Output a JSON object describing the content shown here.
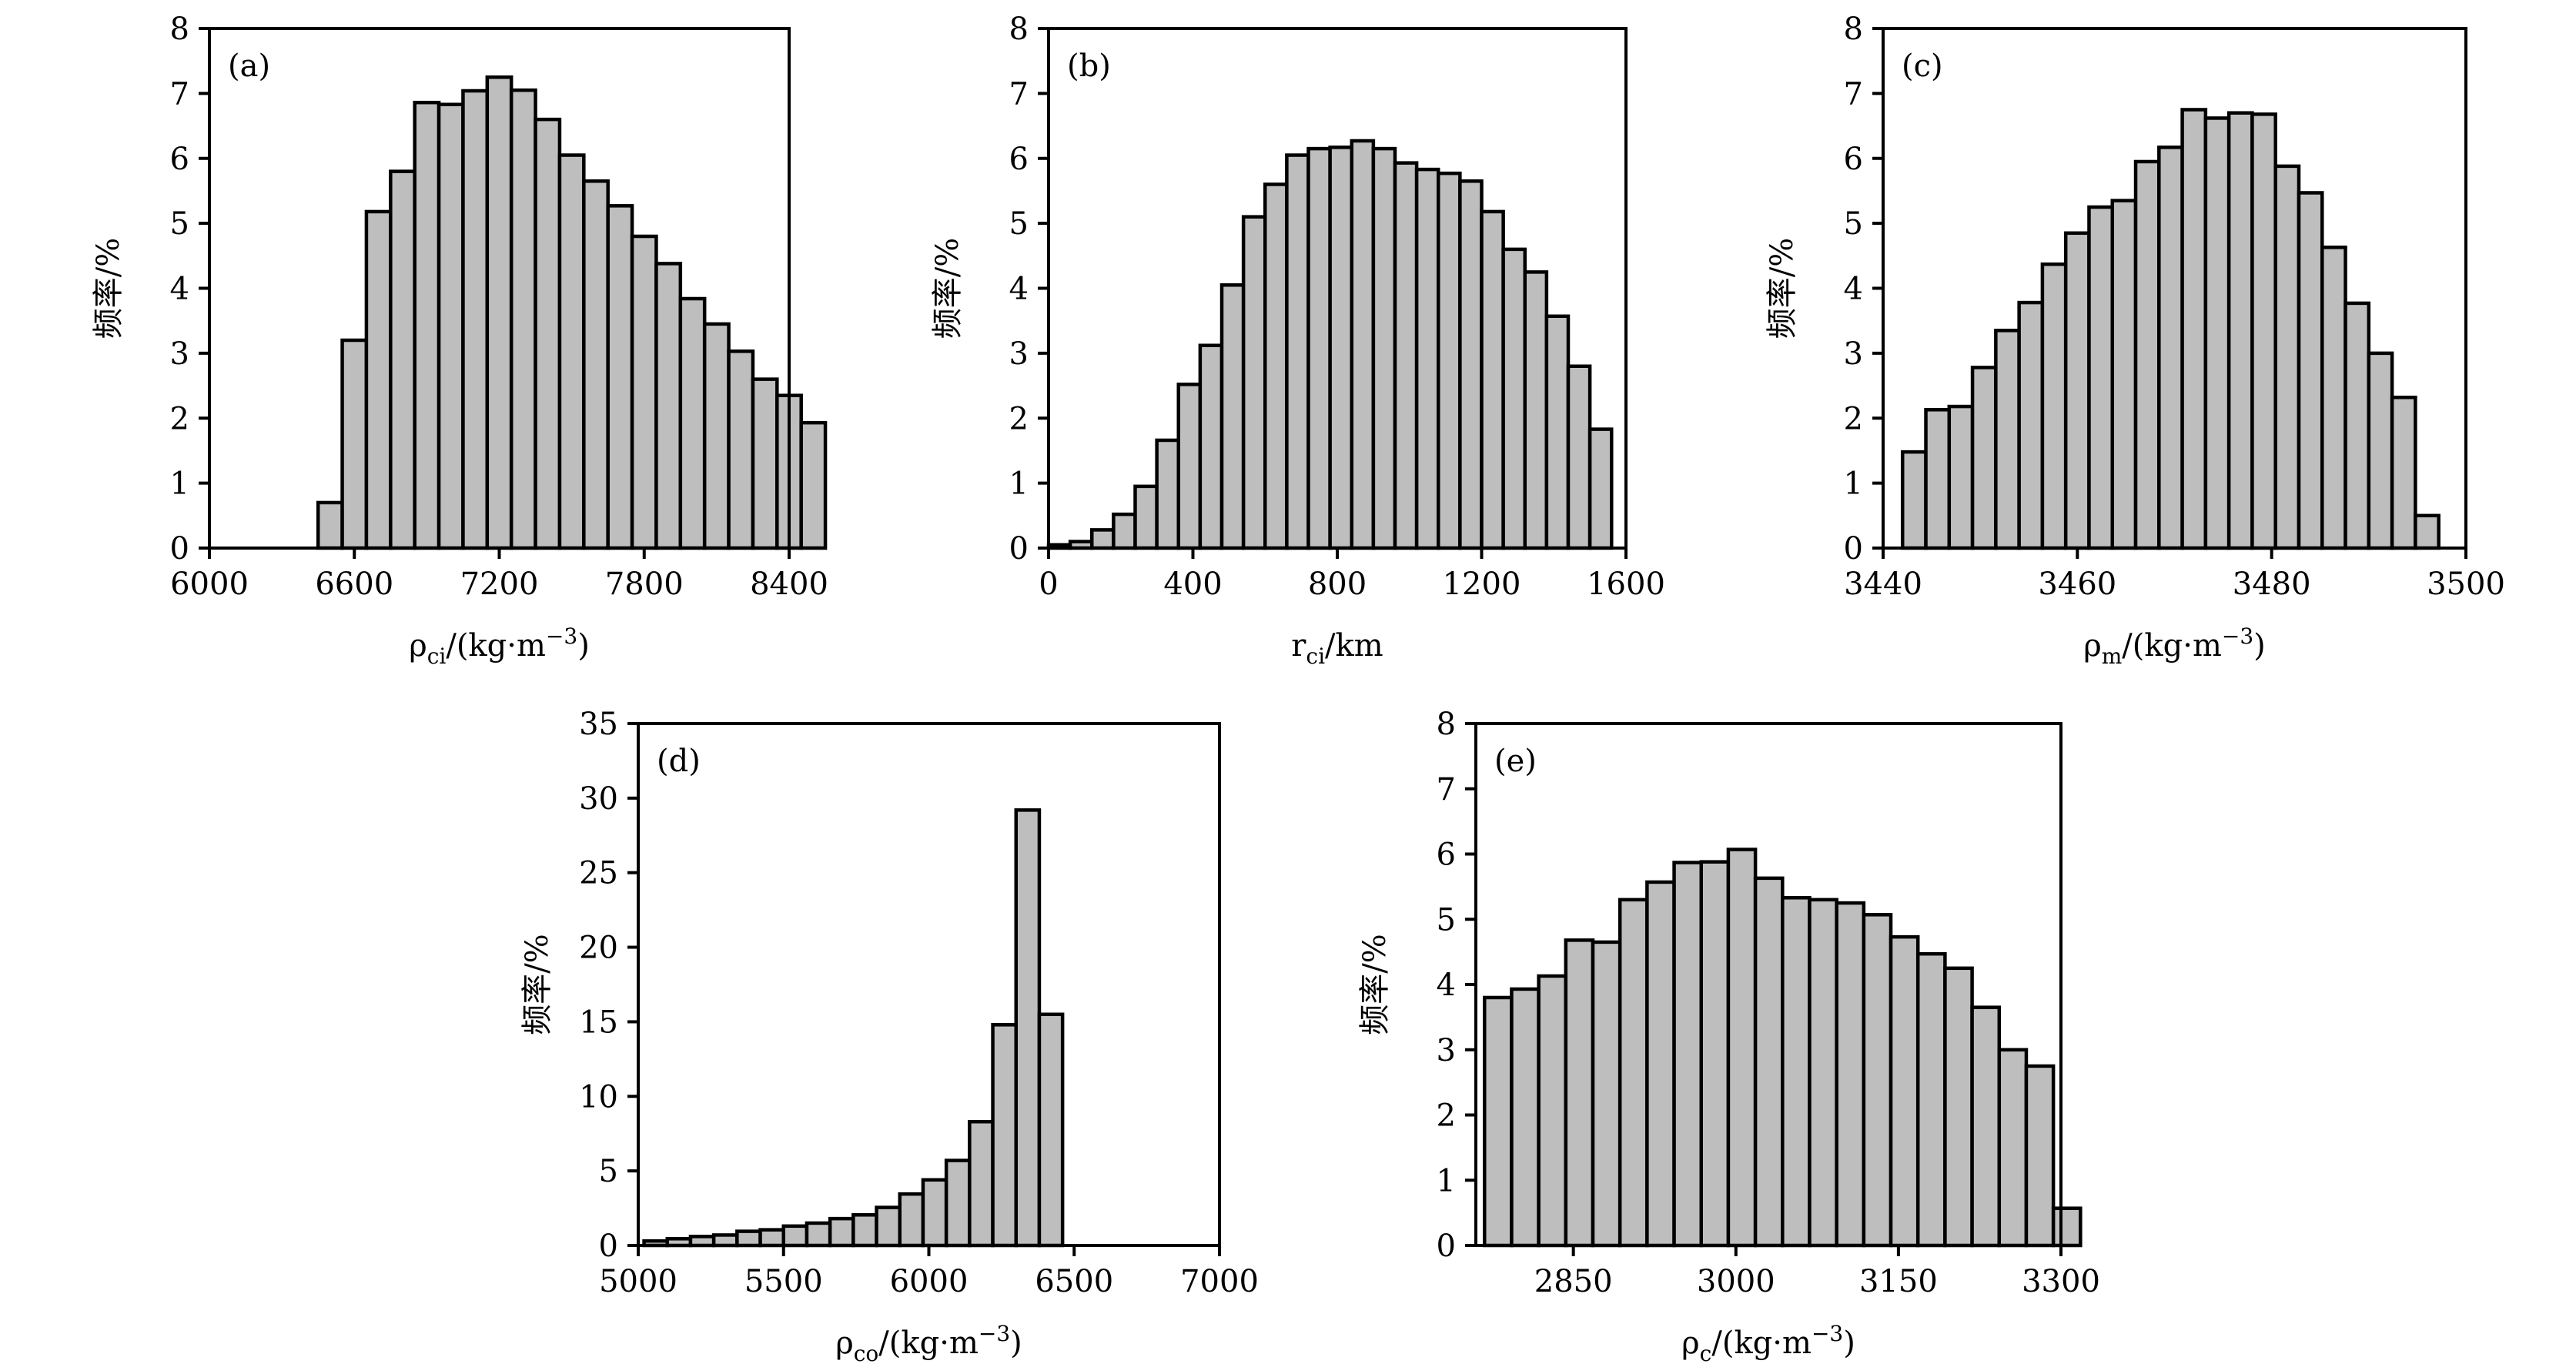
{
  "chart_data": [
    {
      "type": "bar",
      "panel_label": "(a)",
      "ylabel": "频率/%",
      "xlabel": "ρci/(kg·m⁻³)",
      "xlabel_parts": [
        "ρ",
        "ci",
        "/(kg·m",
        "−3",
        ")"
      ],
      "xlim": [
        6000,
        8400
      ],
      "ylim": [
        0,
        8
      ],
      "xticks": [
        6000,
        6600,
        7200,
        7800,
        8400
      ],
      "yticks": [
        0,
        1,
        2,
        3,
        4,
        5,
        6,
        7,
        8
      ],
      "bin_start": 6450,
      "bin_width": 100,
      "values": [
        0.7,
        3.2,
        5.18,
        5.8,
        6.86,
        6.83,
        7.04,
        7.25,
        7.05,
        6.6,
        6.05,
        5.65,
        5.27,
        4.8,
        4.38,
        3.84,
        3.45,
        3.03,
        2.6,
        2.35,
        1.93
      ]
    },
    {
      "type": "bar",
      "panel_label": "(b)",
      "ylabel": "频率/%",
      "xlabel": "rci/km",
      "xlabel_parts": [
        "r",
        "ci",
        "/km",
        "",
        ""
      ],
      "xlim": [
        0,
        1600
      ],
      "ylim": [
        0,
        8
      ],
      "xticks": [
        0,
        400,
        800,
        1200,
        1600
      ],
      "yticks": [
        0,
        1,
        2,
        3,
        4,
        5,
        6,
        7,
        8
      ],
      "bin_start": 0,
      "bin_width": 60,
      "values": [
        0.05,
        0.1,
        0.28,
        0.52,
        0.95,
        1.66,
        2.52,
        3.12,
        4.05,
        5.1,
        5.6,
        6.05,
        6.15,
        6.17,
        6.27,
        6.15,
        5.93,
        5.83,
        5.77,
        5.65,
        5.18,
        4.6,
        4.25,
        3.57,
        2.8,
        1.83
      ]
    },
    {
      "type": "bar",
      "panel_label": "(c)",
      "ylabel": "频率/%",
      "xlabel": "ρm/(kg·m⁻³)",
      "xlabel_parts": [
        "ρ",
        "m",
        "/(kg·m",
        "−3",
        ")"
      ],
      "xlim": [
        3440,
        3500
      ],
      "ylim": [
        0,
        8
      ],
      "xticks": [
        3440,
        3460,
        3480,
        3500
      ],
      "yticks": [
        0,
        1,
        2,
        3,
        4,
        5,
        6,
        7,
        8
      ],
      "bin_start": 3442,
      "bin_width": 2.4,
      "values": [
        1.48,
        2.13,
        2.18,
        2.78,
        3.35,
        3.78,
        4.37,
        4.85,
        5.25,
        5.35,
        5.95,
        6.17,
        6.75,
        6.62,
        6.7,
        6.68,
        5.88,
        5.47,
        4.63,
        3.77,
        3.0,
        2.32,
        0.5
      ]
    },
    {
      "type": "bar",
      "panel_label": "(d)",
      "ylabel": "频率/%",
      "xlabel": "ρco/(kg·m⁻³)",
      "xlabel_parts": [
        "ρ",
        "co",
        "/(kg·m",
        "−3",
        ")"
      ],
      "xlim": [
        5000,
        7000
      ],
      "ylim": [
        0,
        35
      ],
      "xticks": [
        5000,
        5500,
        6000,
        6500,
        7000
      ],
      "yticks": [
        0,
        5,
        10,
        15,
        20,
        25,
        30,
        35
      ],
      "bin_start": 5020,
      "bin_width": 80,
      "values": [
        0.3,
        0.45,
        0.6,
        0.7,
        0.95,
        1.05,
        1.3,
        1.5,
        1.8,
        2.05,
        2.55,
        3.45,
        4.4,
        5.7,
        8.3,
        14.8,
        29.2,
        15.5
      ]
    },
    {
      "type": "bar",
      "panel_label": "(e)",
      "ylabel": "频率/%",
      "xlabel": "ρc/(kg·m⁻³)",
      "xlabel_parts": [
        "ρ",
        "c",
        "/(kg·m",
        "−3",
        ")"
      ],
      "xlim": [
        2760,
        3300
      ],
      "ylim": [
        0,
        8
      ],
      "xticks": [
        2850,
        3000,
        3150,
        3300
      ],
      "yticks": [
        0,
        1,
        2,
        3,
        4,
        5,
        6,
        7,
        8
      ],
      "bin_start": 2768,
      "bin_width": 25,
      "values": [
        3.8,
        3.93,
        4.13,
        4.68,
        4.65,
        5.3,
        5.57,
        5.87,
        5.88,
        6.07,
        5.63,
        5.33,
        5.3,
        5.25,
        5.07,
        4.73,
        4.47,
        4.25,
        3.65,
        3.0,
        2.75,
        0.57
      ]
    }
  ]
}
